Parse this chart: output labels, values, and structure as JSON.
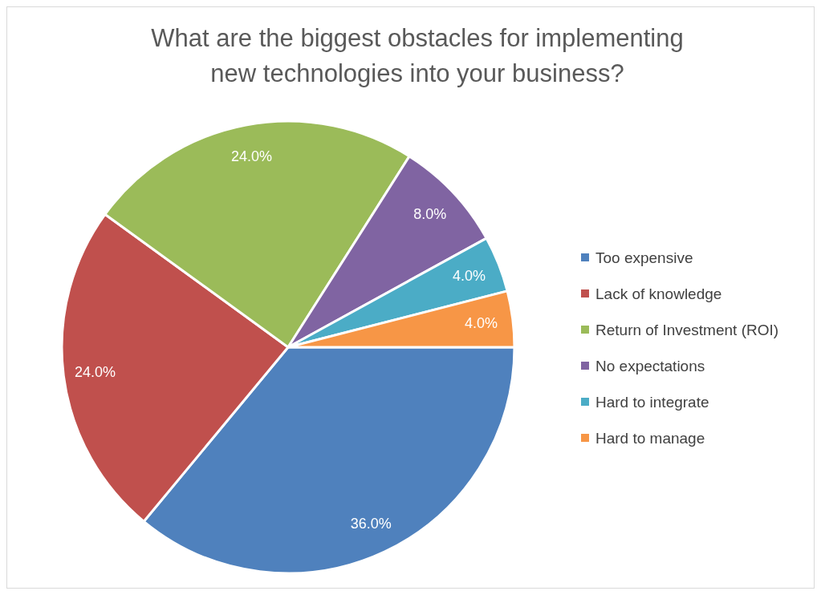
{
  "chart_data": {
    "type": "pie",
    "title": "What are the biggest obstacles for implementing new technologies into your business?",
    "categories": [
      "Too expensive",
      "Lack of knowledge",
      "Return of Investment (ROI)",
      "No expectations",
      "Hard to integrate",
      "Hard to manage"
    ],
    "values": [
      36,
      24,
      24,
      8,
      4,
      4
    ],
    "value_labels": [
      "36.0%",
      "24.0%",
      "24.0%",
      "8.0%",
      "4.0%",
      "4.0%"
    ],
    "colors": [
      "#4f81bd",
      "#c0504d",
      "#9bbb59",
      "#8064a2",
      "#4bacc6",
      "#f79646"
    ],
    "legend": "right"
  }
}
